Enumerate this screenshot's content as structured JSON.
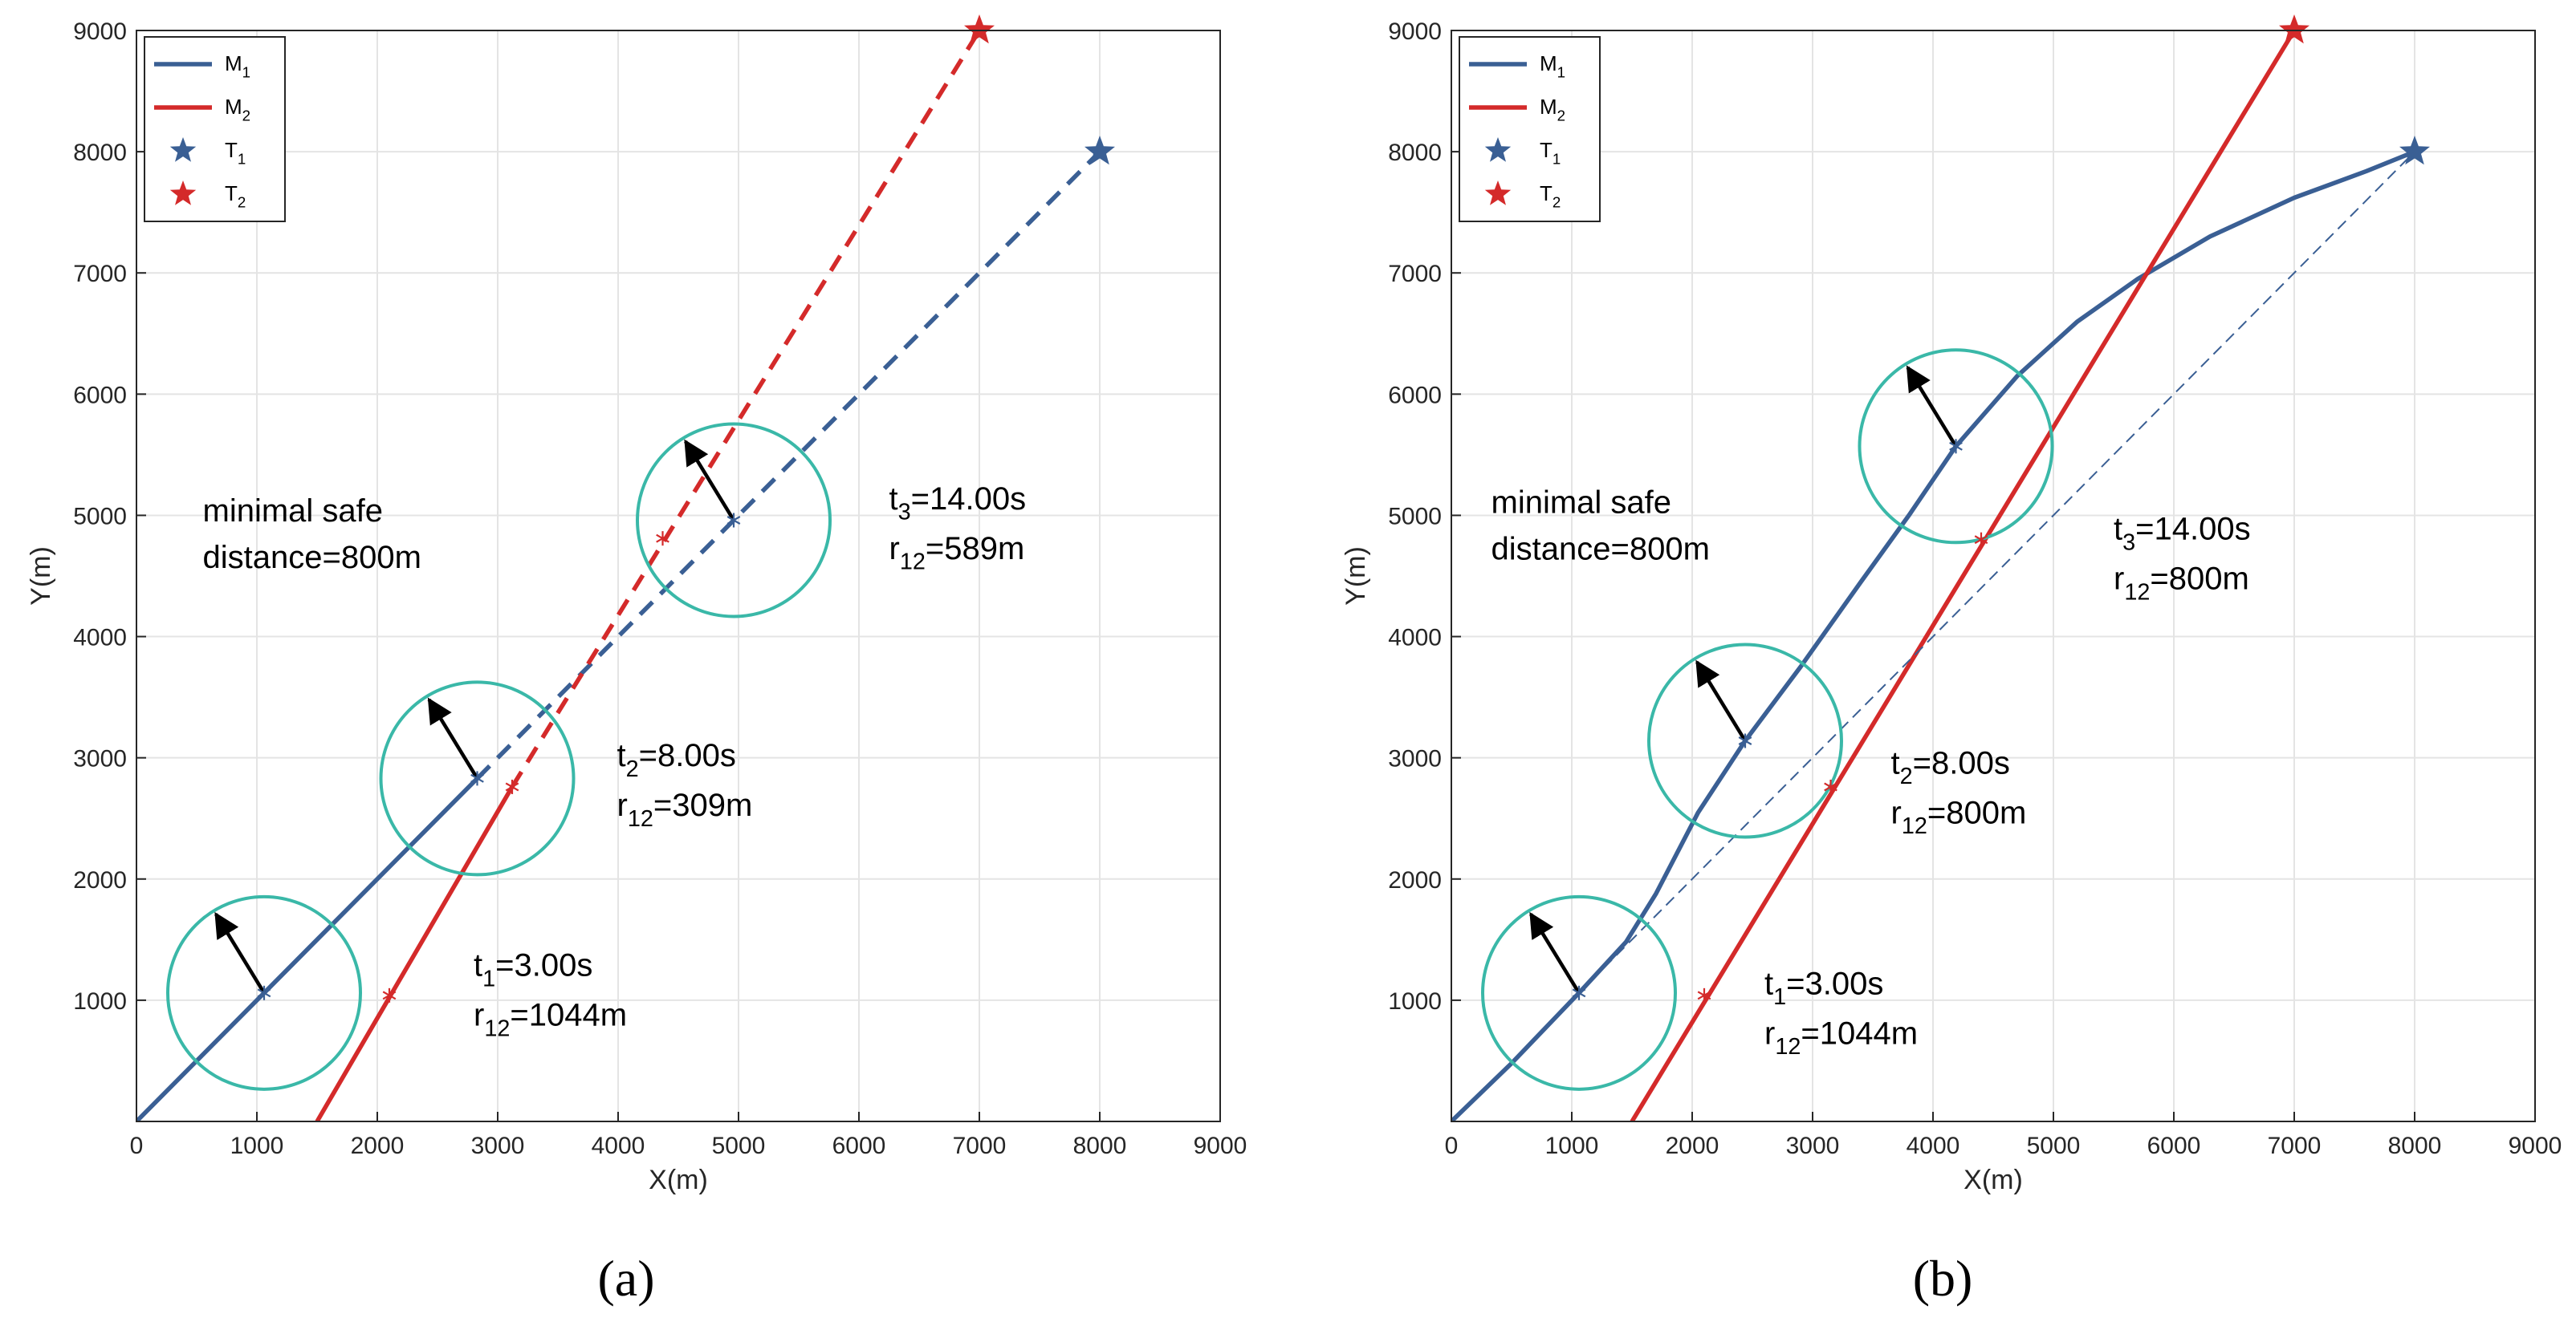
{
  "colors": {
    "m1": "#3a5f94",
    "m2": "#d42a2a",
    "circle": "#3ab8a8",
    "arrow": "#000000",
    "grid": "#e4e4e4",
    "axis": "#262626"
  },
  "legend": {
    "entries": [
      {
        "key": "M1",
        "base": "M",
        "sub": "1",
        "kind": "line",
        "series": "m1"
      },
      {
        "key": "M2",
        "base": "M",
        "sub": "2",
        "kind": "line",
        "series": "m2"
      },
      {
        "key": "T1",
        "base": "T",
        "sub": "1",
        "kind": "star",
        "series": "m1"
      },
      {
        "key": "T2",
        "base": "T",
        "sub": "2",
        "kind": "star",
        "series": "m2"
      }
    ]
  },
  "chart_data": [
    {
      "panel": "a",
      "type": "line",
      "sub_label": "(a)",
      "xlabel": "X(m)",
      "ylabel": "Y(m)",
      "xlim": [
        0,
        9000
      ],
      "ylim": [
        0,
        9000
      ],
      "xticks": [
        0,
        1000,
        2000,
        3000,
        4000,
        5000,
        6000,
        7000,
        8000,
        9000
      ],
      "yticks": [
        1000,
        2000,
        3000,
        4000,
        5000,
        6000,
        7000,
        8000,
        9000
      ],
      "grid": true,
      "legend_position": "top-left",
      "safe_note": [
        "minimal safe",
        "distance=800m"
      ],
      "series": [
        {
          "name": "M1",
          "color_key": "m1",
          "style": "solid",
          "points": [
            [
              0,
              0
            ],
            [
              2830,
              2830
            ]
          ]
        },
        {
          "name": "M1 planned",
          "color_key": "m1",
          "style": "dashed",
          "points": [
            [
              2830,
              2830
            ],
            [
              8000,
              8000
            ]
          ]
        },
        {
          "name": "M2",
          "color_key": "m2",
          "style": "solid",
          "points": [
            [
              1500,
              0
            ],
            [
              3120,
              2760
            ]
          ]
        },
        {
          "name": "M2 planned",
          "color_key": "m2",
          "style": "dashed",
          "points": [
            [
              3120,
              2760
            ],
            [
              7000,
              9000
            ]
          ]
        }
      ],
      "targets": [
        {
          "name": "T1",
          "color_key": "m1",
          "x": 8000,
          "y": 8000
        },
        {
          "name": "T2",
          "color_key": "m2",
          "x": 7000,
          "y": 9000
        }
      ],
      "snapshots": [
        {
          "t": "3.00s",
          "r": "1044m",
          "tsub": "1",
          "m1": [
            1060,
            1060
          ],
          "m2": [
            2100,
            1040
          ],
          "heading": [
            -400,
            650
          ],
          "label_at": [
            2800,
            1200
          ]
        },
        {
          "t": "8.00s",
          "r": "309m",
          "tsub": "2",
          "m1": [
            2830,
            2830
          ],
          "m2": [
            3120,
            2760
          ],
          "heading": [
            -400,
            650
          ],
          "label_at": [
            3990,
            2930
          ]
        },
        {
          "t": "14.00s",
          "r": "589m",
          "tsub": "3",
          "m1": [
            4960,
            4960
          ],
          "m2": [
            4370,
            4810
          ],
          "heading": [
            -400,
            650
          ],
          "label_at": [
            6250,
            5050
          ]
        }
      ]
    },
    {
      "panel": "b",
      "type": "line",
      "sub_label": "(b)",
      "xlabel": "X(m)",
      "ylabel": "Y(m)",
      "xlim": [
        0,
        9000
      ],
      "ylim": [
        0,
        9000
      ],
      "xticks": [
        0,
        1000,
        2000,
        3000,
        4000,
        5000,
        6000,
        7000,
        8000,
        9000
      ],
      "yticks": [
        1000,
        2000,
        3000,
        4000,
        5000,
        6000,
        7000,
        8000,
        9000
      ],
      "grid": true,
      "legend_position": "top-left",
      "safe_note": [
        "minimal safe",
        "distance=800m"
      ],
      "series": [
        {
          "name": "M1",
          "color_key": "m1",
          "style": "solid",
          "points": [
            [
              0,
              0
            ],
            [
              500,
              480
            ],
            [
              1060,
              1060
            ],
            [
              1450,
              1480
            ],
            [
              1700,
              1880
            ],
            [
              2050,
              2550
            ],
            [
              2440,
              3140
            ],
            [
              2900,
              3750
            ],
            [
              3400,
              4450
            ],
            [
              3800,
              5000
            ],
            [
              4190,
              5570
            ],
            [
              4700,
              6150
            ],
            [
              5200,
              6600
            ],
            [
              5700,
              6950
            ],
            [
              6300,
              7300
            ],
            [
              7000,
              7620
            ],
            [
              7600,
              7840
            ],
            [
              8000,
              8000
            ]
          ]
        },
        {
          "name": "M2",
          "color_key": "m2",
          "style": "solid",
          "points": [
            [
              1500,
              0
            ],
            [
              7000,
              9000
            ]
          ]
        },
        {
          "name": "M1 nominal",
          "color_key": "m1",
          "style": "thin-dashed",
          "points": [
            [
              1060,
              1060
            ],
            [
              8000,
              8000
            ]
          ]
        }
      ],
      "targets": [
        {
          "name": "T1",
          "color_key": "m1",
          "x": 8000,
          "y": 8000
        },
        {
          "name": "T2",
          "color_key": "m2",
          "x": 7000,
          "y": 9000
        }
      ],
      "snapshots": [
        {
          "t": "3.00s",
          "r": "1044m",
          "tsub": "1",
          "m1": [
            1060,
            1060
          ],
          "m2": [
            2100,
            1040
          ],
          "heading": [
            -400,
            650
          ],
          "label_at": [
            2600,
            1050
          ]
        },
        {
          "t": "8.00s",
          "r": "800m",
          "tsub": "2",
          "m1": [
            2440,
            3140
          ],
          "m2": [
            3150,
            2760
          ],
          "heading": [
            -400,
            650
          ],
          "label_at": [
            3650,
            2870
          ]
        },
        {
          "t": "14.00s",
          "r": "800m",
          "tsub": "3",
          "m1": [
            4190,
            5570
          ],
          "m2": [
            4400,
            4800
          ],
          "heading": [
            -400,
            650
          ],
          "label_at": [
            5500,
            4800
          ]
        }
      ]
    }
  ]
}
